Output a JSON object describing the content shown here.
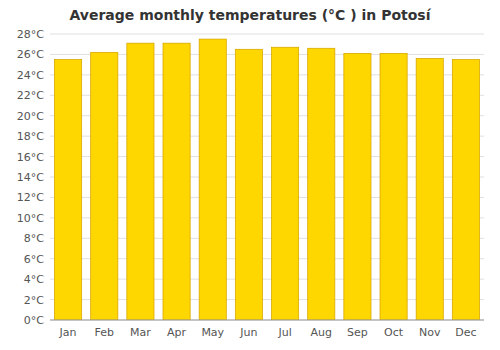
{
  "chart_data": {
    "type": "bar",
    "title": "Average monthly temperatures (°C ) in Potosí",
    "categories": [
      "Jan",
      "Feb",
      "Mar",
      "Apr",
      "May",
      "Jun",
      "Jul",
      "Aug",
      "Sep",
      "Oct",
      "Nov",
      "Dec"
    ],
    "values": [
      25.5,
      26.2,
      27.1,
      27.1,
      27.5,
      26.5,
      26.7,
      26.6,
      26.1,
      26.1,
      25.6,
      25.5
    ],
    "color": "#FFD700",
    "ylim": [
      0,
      28
    ],
    "yticks": [
      {
        "value": 0,
        "label": "0°C"
      },
      {
        "value": 2,
        "label": "2°C"
      },
      {
        "value": 4,
        "label": "4°C"
      },
      {
        "value": 6,
        "label": "6°C"
      },
      {
        "value": 8,
        "label": "8°C"
      },
      {
        "value": 10,
        "label": "10°C"
      },
      {
        "value": 12,
        "label": "12°C"
      },
      {
        "value": 14,
        "label": "14°C"
      },
      {
        "value": 16,
        "label": "16°C"
      },
      {
        "value": 18,
        "label": "18°C"
      },
      {
        "value": 20,
        "label": "20°C"
      },
      {
        "value": 22,
        "label": "22°C"
      },
      {
        "value": 24,
        "label": "24°C"
      },
      {
        "value": 26,
        "label": "26°C"
      },
      {
        "value": 28,
        "label": "28°C"
      }
    ],
    "grid": true
  }
}
